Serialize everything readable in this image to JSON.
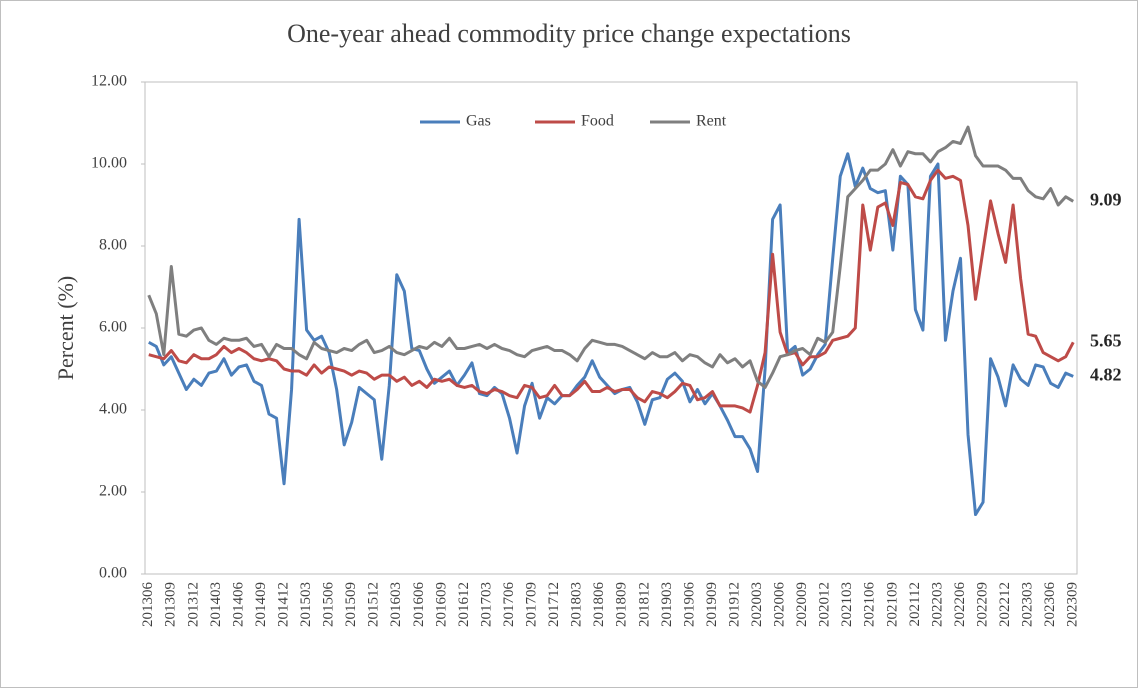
{
  "chart_data": {
    "type": "line",
    "title": "One-year  ahead  commodity  price  change  expectations",
    "y_label": "Percent (%)",
    "categories": [
      "201306",
      null,
      null,
      "201309",
      null,
      null,
      "201312",
      null,
      null,
      "201403",
      null,
      null,
      "201406",
      null,
      null,
      "201409",
      null,
      null,
      "201412",
      null,
      null,
      "201503",
      null,
      null,
      "201506",
      null,
      null,
      "201509",
      null,
      null,
      "201512",
      null,
      null,
      "201603",
      null,
      null,
      "201606",
      null,
      null,
      "201609",
      null,
      null,
      "201612",
      null,
      null,
      "201703",
      null,
      null,
      "201706",
      null,
      null,
      "201709",
      null,
      null,
      "201712",
      null,
      null,
      "201803",
      null,
      null,
      "201806",
      null,
      null,
      "201809",
      null,
      null,
      "201812",
      null,
      null,
      "201903",
      null,
      null,
      "201906",
      null,
      null,
      "201909",
      null,
      null,
      "201912",
      null,
      null,
      "202003",
      null,
      null,
      "202006",
      null,
      null,
      "202009",
      null,
      null,
      "202012",
      null,
      null,
      "202103",
      null,
      null,
      "202106",
      null,
      null,
      "202109",
      null,
      null,
      "202112",
      null,
      null,
      "202203",
      null,
      null,
      "202206",
      null,
      null,
      "202209",
      null,
      null,
      "202212",
      null,
      null,
      "202303",
      null,
      null,
      "202306",
      null,
      null,
      "202309"
    ],
    "series": [
      {
        "name": "Gas",
        "color": "#4a7ebb",
        "end_label": "4.82",
        "values": [
          5.65,
          5.55,
          5.1,
          5.3,
          4.9,
          4.5,
          4.75,
          4.6,
          4.9,
          4.95,
          5.25,
          4.85,
          5.05,
          5.1,
          4.7,
          4.6,
          3.9,
          3.8,
          2.2,
          4.5,
          8.65,
          5.95,
          5.7,
          5.8,
          5.4,
          4.5,
          3.15,
          3.7,
          4.55,
          4.4,
          4.25,
          2.8,
          4.6,
          7.3,
          6.9,
          5.5,
          5.45,
          5.0,
          4.65,
          4.8,
          4.95,
          4.6,
          4.85,
          5.15,
          4.4,
          4.35,
          4.55,
          4.4,
          3.8,
          2.95,
          4.1,
          4.65,
          3.8,
          4.3,
          4.15,
          4.35,
          4.35,
          4.6,
          4.8,
          5.2,
          4.8,
          4.6,
          4.4,
          4.5,
          4.55,
          4.2,
          3.65,
          4.25,
          4.3,
          4.75,
          4.9,
          4.7,
          4.2,
          4.5,
          4.15,
          4.4,
          4.1,
          3.75,
          3.35,
          3.35,
          3.05,
          2.5,
          5.0,
          8.65,
          9.0,
          5.4,
          5.55,
          4.85,
          5.0,
          5.35,
          5.6,
          7.7,
          9.7,
          10.25,
          9.45,
          9.9,
          9.4,
          9.3,
          9.35,
          7.9,
          9.7,
          9.5,
          6.45,
          5.95,
          9.7,
          10.0,
          5.7,
          6.9,
          7.7,
          3.4,
          1.45,
          1.75,
          5.25,
          4.8,
          4.1,
          5.1,
          4.75,
          4.6,
          5.1,
          5.05,
          4.65,
          4.55,
          4.9,
          4.82
        ]
      },
      {
        "name": "Food",
        "color": "#be4b48",
        "end_label": "5.65",
        "values": [
          5.35,
          5.3,
          5.25,
          5.45,
          5.2,
          5.15,
          5.35,
          5.25,
          5.25,
          5.35,
          5.55,
          5.4,
          5.5,
          5.4,
          5.25,
          5.2,
          5.25,
          5.2,
          5.0,
          4.95,
          4.95,
          4.85,
          5.1,
          4.9,
          5.05,
          5.0,
          4.95,
          4.85,
          4.95,
          4.9,
          4.75,
          4.85,
          4.85,
          4.7,
          4.8,
          4.6,
          4.7,
          4.55,
          4.75,
          4.7,
          4.75,
          4.6,
          4.55,
          4.6,
          4.45,
          4.4,
          4.5,
          4.45,
          4.35,
          4.3,
          4.6,
          4.55,
          4.3,
          4.35,
          4.6,
          4.35,
          4.35,
          4.5,
          4.7,
          4.45,
          4.45,
          4.55,
          4.45,
          4.5,
          4.5,
          4.3,
          4.2,
          4.45,
          4.4,
          4.3,
          4.45,
          4.65,
          4.6,
          4.25,
          4.3,
          4.45,
          4.1,
          4.1,
          4.1,
          4.05,
          3.95,
          4.6,
          5.4,
          7.8,
          5.9,
          5.35,
          5.4,
          5.1,
          5.3,
          5.3,
          5.4,
          5.7,
          5.75,
          5.8,
          6.0,
          9.0,
          7.9,
          8.95,
          9.05,
          8.5,
          9.55,
          9.5,
          9.2,
          9.15,
          9.6,
          9.85,
          9.65,
          9.7,
          9.6,
          8.5,
          6.7,
          7.9,
          9.1,
          8.3,
          7.6,
          9.0,
          7.2,
          5.85,
          5.8,
          5.4,
          5.3,
          5.2,
          5.3,
          5.65
        ]
      },
      {
        "name": "Rent",
        "color": "#7f7f7f",
        "end_label": "9.09",
        "values": [
          6.8,
          6.35,
          5.35,
          7.5,
          5.85,
          5.8,
          5.95,
          6.0,
          5.7,
          5.6,
          5.75,
          5.7,
          5.7,
          5.75,
          5.55,
          5.6,
          5.3,
          5.6,
          5.5,
          5.5,
          5.35,
          5.25,
          5.65,
          5.5,
          5.45,
          5.4,
          5.5,
          5.45,
          5.6,
          5.7,
          5.4,
          5.45,
          5.55,
          5.4,
          5.35,
          5.45,
          5.55,
          5.5,
          5.65,
          5.55,
          5.75,
          5.5,
          5.5,
          5.55,
          5.6,
          5.5,
          5.6,
          5.5,
          5.45,
          5.35,
          5.3,
          5.45,
          5.5,
          5.55,
          5.45,
          5.45,
          5.35,
          5.2,
          5.5,
          5.7,
          5.65,
          5.6,
          5.6,
          5.55,
          5.45,
          5.35,
          5.25,
          5.4,
          5.3,
          5.3,
          5.4,
          5.2,
          5.35,
          5.3,
          5.15,
          5.05,
          5.35,
          5.15,
          5.25,
          5.05,
          5.2,
          4.7,
          4.55,
          4.9,
          5.3,
          5.35,
          5.45,
          5.5,
          5.35,
          5.75,
          5.65,
          5.9,
          7.5,
          9.2,
          9.4,
          9.6,
          9.85,
          9.85,
          10.0,
          10.35,
          9.95,
          10.3,
          10.25,
          10.25,
          10.05,
          10.3,
          10.4,
          10.55,
          10.5,
          10.9,
          10.2,
          9.95,
          9.95,
          9.95,
          9.85,
          9.65,
          9.65,
          9.35,
          9.2,
          9.15,
          9.4,
          9.0,
          9.2,
          9.09
        ]
      }
    ],
    "ylim": [
      0,
      12
    ],
    "yticks": [
      {
        "value": 0,
        "label": "0.00"
      },
      {
        "value": 2,
        "label": "2.00"
      },
      {
        "value": 4,
        "label": "4.00"
      },
      {
        "value": 6,
        "label": "6.00"
      },
      {
        "value": 8,
        "label": "8.00"
      },
      {
        "value": 10,
        "label": "10.00"
      },
      {
        "value": 12,
        "label": "12.00"
      }
    ],
    "legend": "top"
  }
}
